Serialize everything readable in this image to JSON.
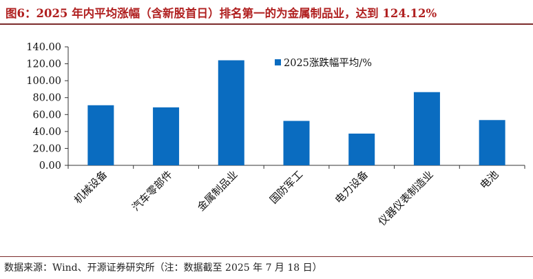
{
  "header": {
    "title": "图6：2025 年内平均涨幅（含新股首日）排名第一的为金属制品业，达到 124.12%"
  },
  "footer": {
    "source": "数据来源：Wind、开源证券研究所（注：数据截至 2025 年 7 月 18 日）"
  },
  "colors": {
    "bar": "#0a6cc0",
    "title": "#b02020",
    "rule": "#7b2a2a"
  },
  "chart_data": {
    "type": "bar",
    "categories": [
      "机械设备",
      "汽车零部件",
      "金属制品业",
      "国防军工",
      "电力设备",
      "仪器仪表制造业",
      "电池"
    ],
    "series": [
      {
        "name": "2025涨跌幅平均/%",
        "values": [
          71.0,
          68.5,
          124.12,
          52.5,
          37.5,
          86.5,
          53.5
        ]
      }
    ],
    "yticks": [
      "0.00",
      "20.00",
      "40.00",
      "60.00",
      "80.00",
      "100.00",
      "120.00",
      "140.00"
    ],
    "ylim": [
      0,
      140
    ],
    "grid": false,
    "legend": "top-center"
  }
}
